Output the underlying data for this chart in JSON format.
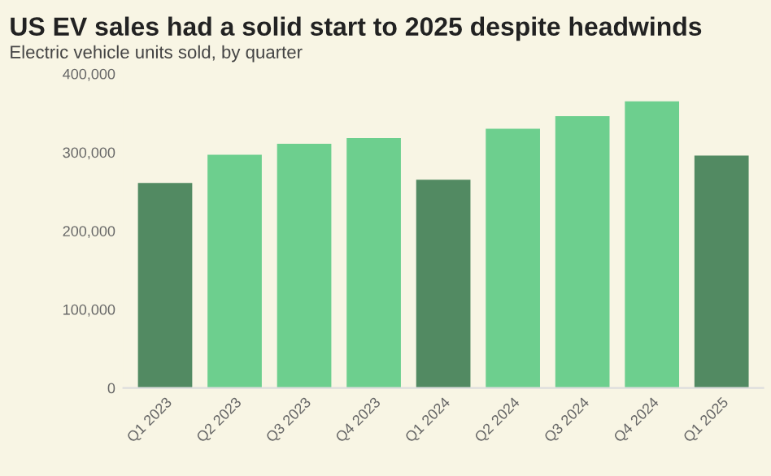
{
  "chart_data": {
    "type": "bar",
    "title": "US EV sales had a solid start to 2025 despite headwinds",
    "subtitle": "Electric vehicle units sold, by quarter",
    "categories": [
      "Q1 2023",
      "Q2 2023",
      "Q3 2023",
      "Q4 2023",
      "Q1 2024",
      "Q2 2024",
      "Q3 2024",
      "Q4 2024",
      "Q1 2025"
    ],
    "values": [
      261000,
      297000,
      311000,
      318000,
      265000,
      330000,
      346000,
      365000,
      296000
    ],
    "colors": [
      "#528a62",
      "#6dcf8e",
      "#6dcf8e",
      "#6dcf8e",
      "#528a62",
      "#6dcf8e",
      "#6dcf8e",
      "#6dcf8e",
      "#528a62"
    ],
    "ylim": [
      0,
      400000
    ],
    "yticks": [
      {
        "value": 0,
        "label": "0"
      },
      {
        "value": 100000,
        "label": "100,000"
      },
      {
        "value": 200000,
        "label": "200,000"
      },
      {
        "value": 300000,
        "label": "300,000"
      },
      {
        "value": 400000,
        "label": "400,000"
      }
    ],
    "grid": false,
    "legend": false
  }
}
